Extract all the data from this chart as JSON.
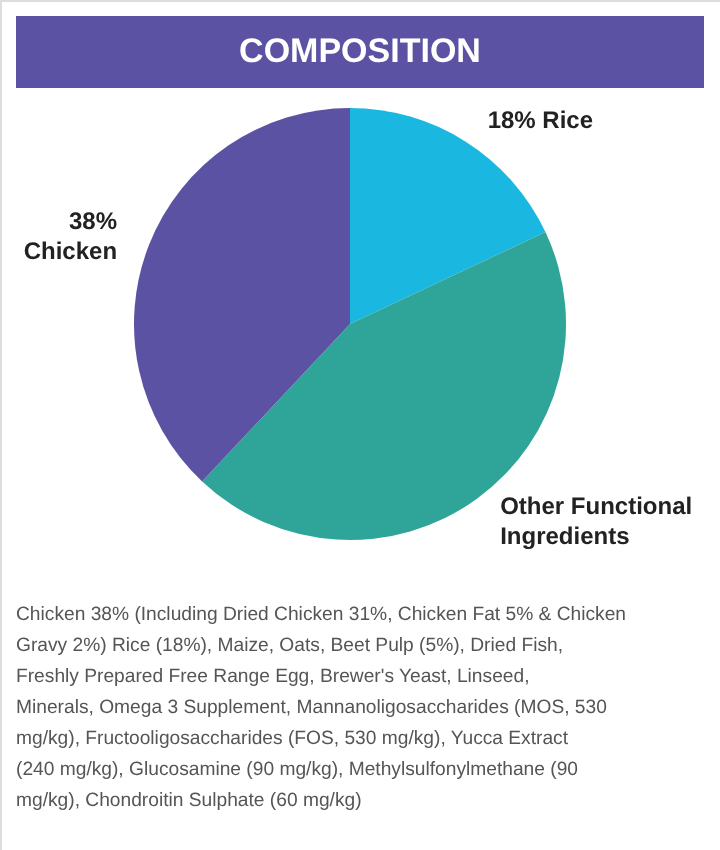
{
  "chart_data": {
    "type": "pie",
    "title": "COMPOSITION",
    "categories": [
      "Rice",
      "Other Functional Ingredients",
      "Chicken"
    ],
    "values": [
      18,
      44,
      38
    ],
    "value_labels": [
      "18%",
      null,
      "38%"
    ],
    "colors": [
      "#1ab8e0",
      "#2fa59a",
      "#5b52a3"
    ],
    "annotations": [
      "Chicken 38% (Including Dried Chicken 31%, Chicken Fat 5% & Chicken Gravy 2%) Rice (18%), Maize, Oats, Beet Pulp (5%), Dried Fish, Freshly Prepared Free Range Egg, Brewer's Yeast, Linseed, Minerals, Omega 3 Supplement, Mannanoligosaccharides (MOS, 530 mg/kg), Fructooligosaccharides (FOS, 530 mg/kg), Yucca Extract (240 mg/kg), Glucosamine (90 mg/kg), Methylsulfonylmethane (90 mg/kg), Chondroitin Sulphate (60 mg/kg)"
    ]
  }
}
